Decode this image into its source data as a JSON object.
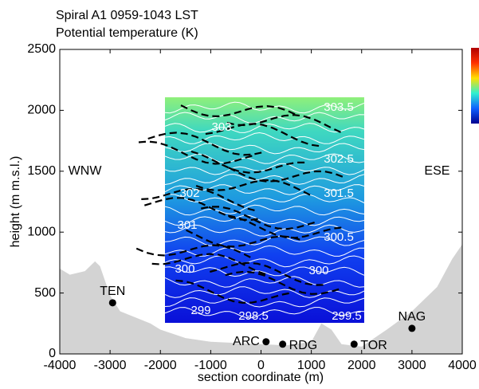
{
  "chart_data": {
    "type": "contour",
    "title": "Spiral A1 0959-1043 LST",
    "subtitle": "Potential temperature (K)",
    "x_label": "section coordinate (m)",
    "y_label": "height (m m.s.l.)",
    "xlim": [
      -4000,
      4000
    ],
    "xticks": [
      -4000,
      -3000,
      -2000,
      -1000,
      0,
      1000,
      2000,
      3000,
      4000
    ],
    "ylim": [
      0,
      2500
    ],
    "yticks": [
      0,
      500,
      1000,
      1500,
      2000,
      2500
    ],
    "field": {
      "xlim": [
        -1909,
        2051
      ],
      "ylim": [
        255,
        2107
      ]
    },
    "terrain": {
      "color": "#d3d3d3",
      "x": [
        -4000,
        -3800,
        -3500,
        -3300,
        -3200,
        -3000,
        -2800,
        -2500,
        -2200,
        -2000,
        -1500,
        -1000,
        0,
        500,
        1000,
        1200,
        1400,
        1600,
        2000,
        2500,
        3000,
        3500,
        3800,
        4000
      ],
      "values": [
        700,
        650,
        680,
        760,
        720,
        480,
        350,
        300,
        250,
        200,
        130,
        100,
        80,
        70,
        100,
        250,
        200,
        80,
        60,
        200,
        350,
        550,
        780,
        900
      ]
    },
    "stations": {
      "names": [
        "TEN",
        "ARC",
        "RDG",
        "TOR",
        "NAG"
      ],
      "x": [
        -2950,
        100,
        430,
        1850,
        3000
      ],
      "values": [
        420,
        100,
        80,
        80,
        210
      ],
      "label_position": [
        "above",
        "left",
        "right",
        "right",
        "above"
      ]
    },
    "contour_labels": [
      {
        "text": "303.5",
        "x": 1545,
        "y": 2022
      },
      {
        "text": "303",
        "x": -784,
        "y": 1859
      },
      {
        "text": "302.5",
        "x": 1545,
        "y": 1597
      },
      {
        "text": "302",
        "x": -1418,
        "y": 1315
      },
      {
        "text": "301.5",
        "x": 1545,
        "y": 1315
      },
      {
        "text": "301",
        "x": -1465,
        "y": 1054
      },
      {
        "text": "300.5",
        "x": 1545,
        "y": 955
      },
      {
        "text": "300",
        "x": -1513,
        "y": 694
      },
      {
        "text": "300",
        "x": 1149,
        "y": 681
      },
      {
        "text": "299",
        "x": -1196,
        "y": 353
      },
      {
        "text": "298.5",
        "x": -150,
        "y": 308
      },
      {
        "text": "299.5",
        "x": 1703,
        "y": 308
      }
    ],
    "annotations": [
      {
        "text": "WNW",
        "x": -3500,
        "y": 1500
      },
      {
        "text": "ESE",
        "x": 3500,
        "y": 1500
      }
    ]
  }
}
